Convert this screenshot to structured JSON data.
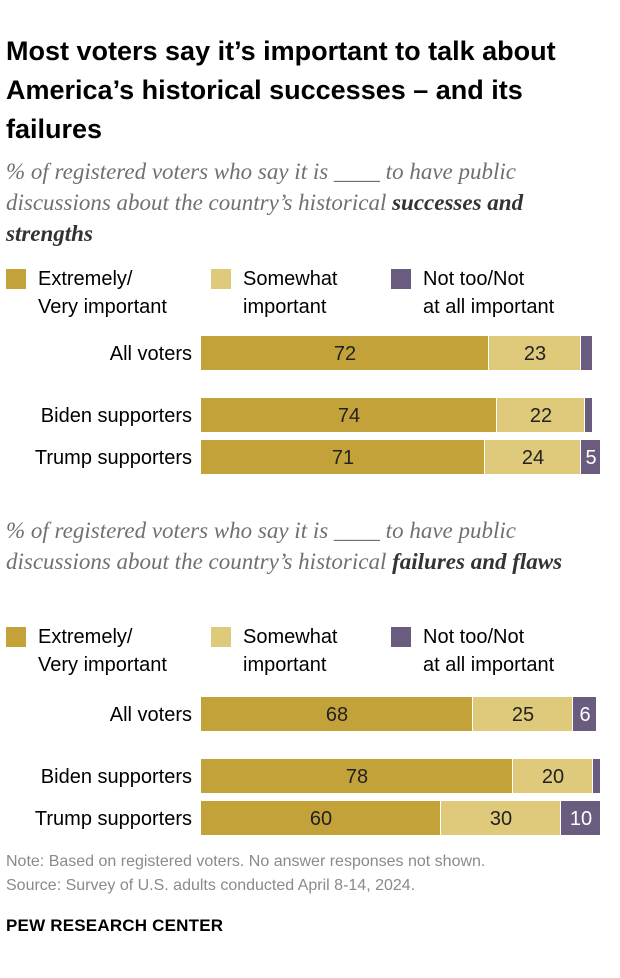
{
  "title": "Most voters say it’s important to talk about America’s historical successes – and its failures",
  "colors": {
    "extremely": "#c4a23a",
    "somewhat": "#dfc97a",
    "not_too": "#695c7e",
    "label_dark": "#222222",
    "label_light": "#ffffff"
  },
  "chart_data": [
    {
      "type": "bar",
      "orientation": "horizontal-stacked",
      "subtitle_prefix": "% of registered voters who say it is ____ to have public discussions about the country’s historical ",
      "subtitle_bold": "successes and strengths",
      "legend": [
        {
          "key": "extremely",
          "line1": "Extremely/",
          "line2": "Very important"
        },
        {
          "key": "somewhat",
          "line1": "Somewhat",
          "line2": "important"
        },
        {
          "key": "not_too",
          "line1": "Not too/Not",
          "line2": "at all important"
        }
      ],
      "categories": [
        "All voters",
        "Biden supporters",
        "Trump supporters"
      ],
      "series": [
        {
          "name": "Extremely/Very important",
          "key": "extremely",
          "values": [
            72,
            74,
            71
          ],
          "labels": [
            "72",
            "74",
            "71"
          ]
        },
        {
          "name": "Somewhat important",
          "key": "somewhat",
          "values": [
            23,
            22,
            24
          ],
          "labels": [
            "23",
            "22",
            "24"
          ]
        },
        {
          "name": "Not too/Not at all important",
          "key": "not_too",
          "values": [
            3,
            2,
            5
          ],
          "labels": [
            "",
            "",
            "5"
          ]
        }
      ]
    },
    {
      "type": "bar",
      "orientation": "horizontal-stacked",
      "subtitle_prefix": "% of registered voters who say it is ____ to have public discussions about the country’s historical ",
      "subtitle_bold": "failures and flaws",
      "legend": [
        {
          "key": "extremely",
          "line1": "Extremely/",
          "line2": "Very important"
        },
        {
          "key": "somewhat",
          "line1": "Somewhat",
          "line2": "important"
        },
        {
          "key": "not_too",
          "line1": "Not too/Not",
          "line2": "at all important"
        }
      ],
      "categories": [
        "All voters",
        "Biden supporters",
        "Trump supporters"
      ],
      "series": [
        {
          "name": "Extremely/Very important",
          "key": "extremely",
          "values": [
            68,
            78,
            60
          ],
          "labels": [
            "68",
            "78",
            "60"
          ]
        },
        {
          "name": "Somewhat important",
          "key": "somewhat",
          "values": [
            25,
            20,
            30
          ],
          "labels": [
            "25",
            "20",
            "30"
          ]
        },
        {
          "name": "Not too/Not at all important",
          "key": "not_too",
          "values": [
            6,
            2,
            10
          ],
          "labels": [
            "6",
            "",
            "10"
          ]
        }
      ]
    }
  ],
  "note": "Note: Based on registered voters. No answer responses not shown.",
  "source": "Source: Survey of U.S. adults conducted April 8-14, 2024.",
  "brand": "PEW RESEARCH CENTER"
}
